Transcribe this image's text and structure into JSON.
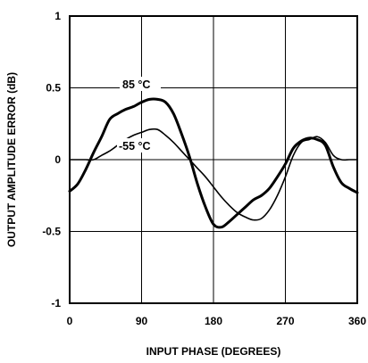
{
  "chart_data": {
    "type": "line",
    "title": "",
    "xlabel": "INPUT PHASE (DEGREES)",
    "ylabel": "OUTPUT AMPLITUDE ERROR (dB)",
    "xlim": [
      0,
      360
    ],
    "ylim": [
      -1,
      1
    ],
    "x_ticks": [
      0,
      90,
      180,
      270,
      360
    ],
    "y_ticks": [
      -1,
      -0.5,
      0,
      0.5,
      1
    ],
    "x_tick_labels": [
      "0",
      "90",
      "180",
      "270",
      "360"
    ],
    "y_tick_labels": [
      "-1",
      "-0.5",
      "0",
      "0.5",
      "1"
    ],
    "grid": true,
    "line_color": "#000000",
    "series": [
      {
        "name": "85 °C",
        "line_weight": "bold",
        "x": [
          0,
          10,
          20,
          30,
          40,
          50,
          60,
          70,
          80,
          90,
          100,
          110,
          120,
          130,
          140,
          150,
          160,
          170,
          180,
          190,
          200,
          210,
          220,
          230,
          240,
          250,
          260,
          270,
          280,
          290,
          300,
          310,
          320,
          330,
          340,
          350,
          360
        ],
        "y": [
          -0.22,
          -0.17,
          -0.07,
          0.05,
          0.16,
          0.28,
          0.32,
          0.35,
          0.37,
          0.4,
          0.42,
          0.42,
          0.4,
          0.32,
          0.18,
          0.02,
          -0.17,
          -0.33,
          -0.45,
          -0.47,
          -0.43,
          -0.38,
          -0.33,
          -0.28,
          -0.25,
          -0.2,
          -0.12,
          -0.03,
          0.08,
          0.13,
          0.15,
          0.14,
          0.1,
          -0.05,
          -0.16,
          -0.2,
          -0.23
        ]
      },
      {
        "name": "-55 °C",
        "line_weight": "normal",
        "x": [
          0,
          10,
          20,
          30,
          40,
          50,
          60,
          70,
          80,
          90,
          100,
          110,
          120,
          130,
          140,
          150,
          160,
          170,
          180,
          190,
          200,
          210,
          220,
          230,
          240,
          250,
          260,
          270,
          280,
          290,
          300,
          310,
          320,
          330,
          340,
          350,
          360
        ],
        "y": [
          0.0,
          0.0,
          0.0,
          0.0,
          0.03,
          0.06,
          0.1,
          0.14,
          0.17,
          0.19,
          0.21,
          0.21,
          0.17,
          0.12,
          0.06,
          0.0,
          -0.06,
          -0.12,
          -0.19,
          -0.26,
          -0.32,
          -0.37,
          -0.4,
          -0.42,
          -0.41,
          -0.35,
          -0.25,
          -0.12,
          0.03,
          0.12,
          0.14,
          0.16,
          0.12,
          0.03,
          0.0,
          0.0,
          0.0
        ]
      }
    ],
    "annotations": [
      {
        "text": "85 °C",
        "series": "85 °C"
      },
      {
        "text": "-55 °C",
        "series": "-55 °C"
      }
    ]
  }
}
